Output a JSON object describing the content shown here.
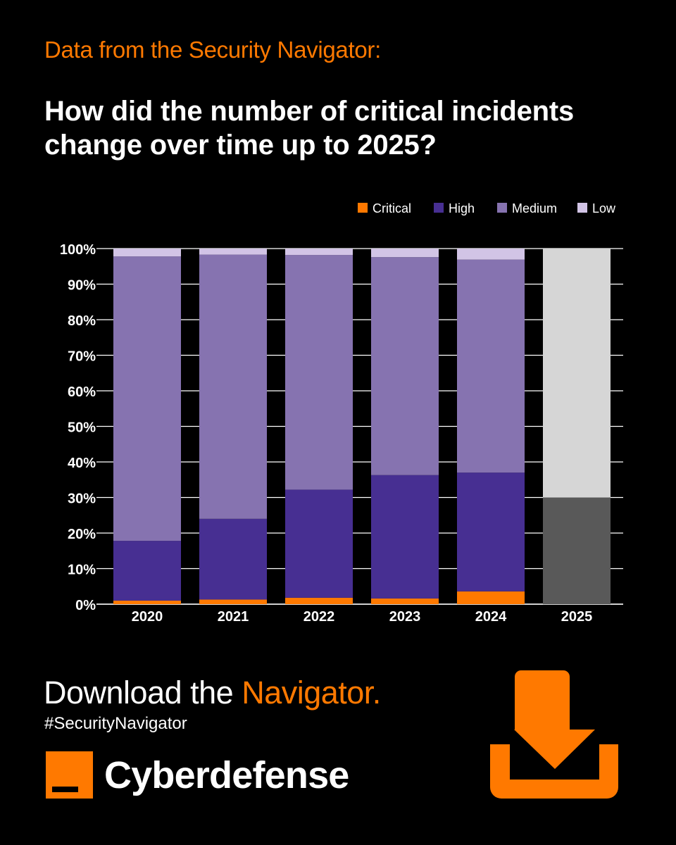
{
  "kicker": "Data from the Security Navigator:",
  "headline": "How did the number of critical incidents change over time up to 2025?",
  "cta": {
    "prefix": "Download the ",
    "highlight": "Navigator."
  },
  "hashtag": "#SecurityNavigator",
  "brand": "Cyberdefense",
  "icons": {
    "download": "download-tray-icon",
    "logo": "orange-square-logo-icon"
  },
  "colors": {
    "accent": "#ff7900",
    "background": "#000000",
    "grid": "#ffffff",
    "critical": "#ff7900",
    "high": "#472f92",
    "medium": "#8673b0",
    "low": "#d2c4e6",
    "forecast_lower": "#595959",
    "forecast_upper": "#d6d6d6"
  },
  "chart_data": {
    "type": "bar",
    "stacked": true,
    "categories": [
      "2020",
      "2021",
      "2022",
      "2023",
      "2024",
      "2025"
    ],
    "series": [
      {
        "name": "Critical",
        "color": "#ff7900",
        "values": [
          1.0,
          1.3,
          1.8,
          1.6,
          3.6,
          null
        ]
      },
      {
        "name": "High",
        "color": "#472f92",
        "values": [
          16.8,
          22.7,
          30.4,
          34.7,
          33.4,
          null
        ]
      },
      {
        "name": "Medium",
        "color": "#8673b0",
        "values": [
          80.0,
          74.3,
          66.0,
          61.3,
          59.9,
          null
        ]
      },
      {
        "name": "Low",
        "color": "#d2c4e6",
        "values": [
          2.2,
          1.7,
          1.8,
          2.4,
          3.1,
          null
        ]
      }
    ],
    "forecast": {
      "category": "2025",
      "segments": [
        {
          "value": 30,
          "color": "#595959"
        },
        {
          "value": 70,
          "color": "#d6d6d6"
        }
      ]
    },
    "yticks": [
      "0%",
      "10%",
      "20%",
      "30%",
      "40%",
      "50%",
      "60%",
      "70%",
      "80%",
      "90%",
      "100%"
    ],
    "ylim": [
      0,
      100
    ],
    "grid": true,
    "legend_position": "top-right",
    "title": "",
    "xlabel": "",
    "ylabel": ""
  }
}
